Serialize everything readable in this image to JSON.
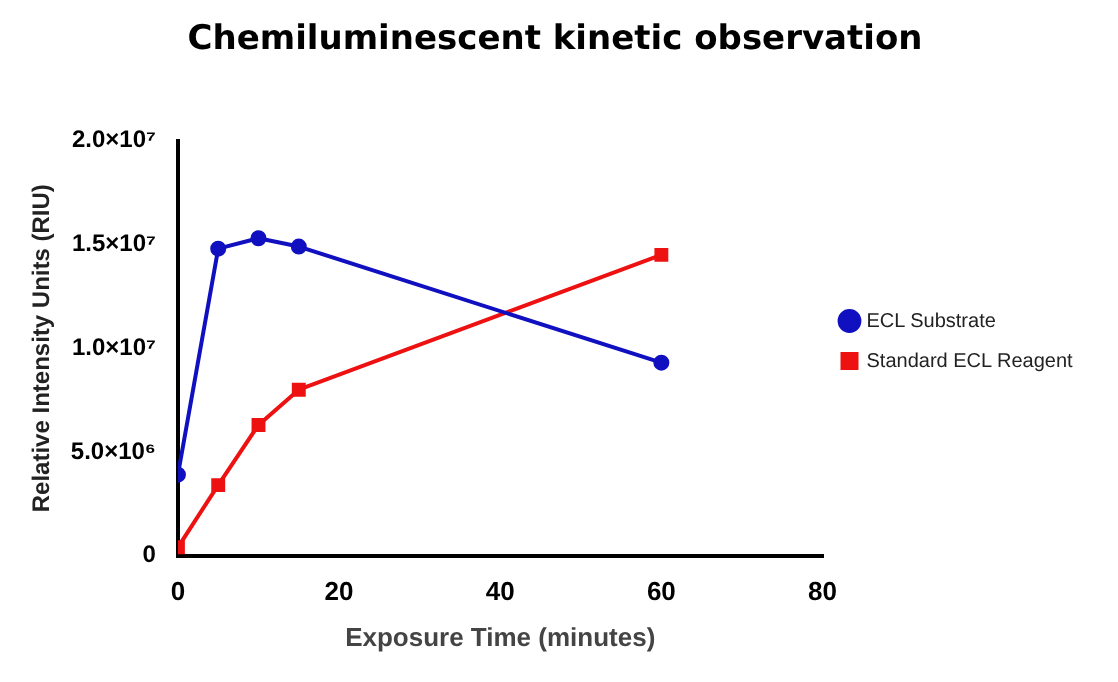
{
  "chart_data": {
    "type": "line",
    "title": "Chemiluminescent kinetic observation",
    "xlabel": "Exposure Time (minutes)",
    "ylabel": "Relative Intensity Units (RIU)",
    "x": [
      0,
      5,
      10,
      15,
      60
    ],
    "series": [
      {
        "name": "ECL Substrate",
        "color": "#1010c0",
        "values": [
          3900000,
          14800000,
          15300000,
          14900000,
          9300000
        ],
        "marker": "circle"
      },
      {
        "name": "Standard ECL Reagent",
        "color": "#ee1111",
        "values": [
          400000,
          3400000,
          6300000,
          8000000,
          14500000
        ],
        "marker": "square"
      }
    ],
    "xlim": [
      0,
      80
    ],
    "xticks": [
      0,
      20,
      40,
      60,
      80
    ],
    "ylim": [
      0,
      20000000
    ],
    "yticks": [
      {
        "value": 0,
        "label": "0"
      },
      {
        "value": 5000000,
        "label": "5.0×10⁶"
      },
      {
        "value": 10000000,
        "label": "1.0×10⁷"
      },
      {
        "value": 15000000,
        "label": "1.5×10⁷"
      },
      {
        "value": 20000000,
        "label": "2.0×10⁷"
      }
    ],
    "grid": false,
    "legend": "right",
    "line_style": "solid"
  }
}
